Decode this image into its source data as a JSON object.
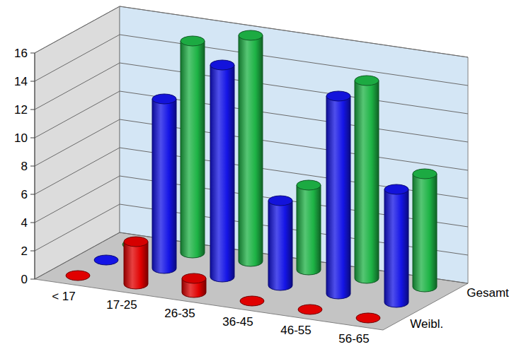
{
  "chart_data": {
    "type": "bar",
    "categories": [
      "< 17",
      "17-25",
      "26-35",
      "36-45",
      "46-55",
      "56-65"
    ],
    "series": [
      {
        "name": "Weibl.",
        "color": "#e00000",
        "values": [
          0,
          3,
          1,
          0,
          0,
          0
        ]
      },
      {
        "color": "#1414e6",
        "values": [
          0,
          12,
          15,
          6,
          14,
          8
        ]
      },
      {
        "name": "Gesamt",
        "color": "#1db345",
        "values": [
          0,
          15,
          16,
          6,
          14,
          8
        ]
      }
    ],
    "ylim": [
      0,
      16
    ],
    "yticks": [
      0,
      2,
      4,
      6,
      8,
      10,
      12,
      14,
      16
    ],
    "grid": true
  }
}
